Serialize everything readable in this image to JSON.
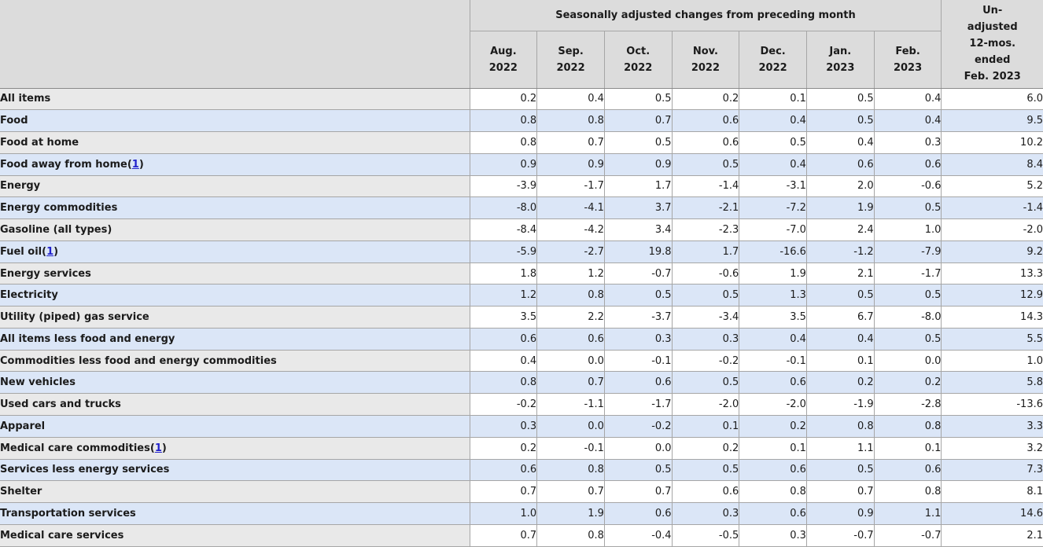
{
  "table": {
    "seasonally_adjusted_header": "Seasonally adjusted changes from preceding month",
    "unadjusted_header_lines": [
      "Un-",
      "adjusted",
      "12-mos.",
      "ended",
      "Feb. 2023"
    ],
    "month_columns": [
      {
        "month": "Aug.",
        "year": "2022"
      },
      {
        "month": "Sep.",
        "year": "2022"
      },
      {
        "month": "Oct.",
        "year": "2022"
      },
      {
        "month": "Nov.",
        "year": "2022"
      },
      {
        "month": "Dec.",
        "year": "2022"
      },
      {
        "month": "Jan.",
        "year": "2023"
      },
      {
        "month": "Feb.",
        "year": "2023"
      }
    ],
    "rows": [
      {
        "label": "All items",
        "indent": 0,
        "footnote": null,
        "values": [
          "0.2",
          "0.4",
          "0.5",
          "0.2",
          "0.1",
          "0.5",
          "0.4"
        ],
        "unadjusted": "6.0"
      },
      {
        "label": "Food",
        "indent": 1,
        "footnote": null,
        "values": [
          "0.8",
          "0.8",
          "0.7",
          "0.6",
          "0.4",
          "0.5",
          "0.4"
        ],
        "unadjusted": "9.5"
      },
      {
        "label": "Food at home",
        "indent": 2,
        "footnote": null,
        "values": [
          "0.8",
          "0.7",
          "0.5",
          "0.6",
          "0.5",
          "0.4",
          "0.3"
        ],
        "unadjusted": "10.2"
      },
      {
        "label": "Food away from home",
        "indent": 2,
        "footnote": "1",
        "values": [
          "0.9",
          "0.9",
          "0.9",
          "0.5",
          "0.4",
          "0.6",
          "0.6"
        ],
        "unadjusted": "8.4"
      },
      {
        "label": "Energy",
        "indent": 1,
        "footnote": null,
        "values": [
          "-3.9",
          "-1.7",
          "1.7",
          "-1.4",
          "-3.1",
          "2.0",
          "-0.6"
        ],
        "unadjusted": "5.2"
      },
      {
        "label": "Energy commodities",
        "indent": 2,
        "footnote": null,
        "values": [
          "-8.0",
          "-4.1",
          "3.7",
          "-2.1",
          "-7.2",
          "1.9",
          "0.5"
        ],
        "unadjusted": "-1.4"
      },
      {
        "label": "Gasoline (all types)",
        "indent": 3,
        "footnote": null,
        "values": [
          "-8.4",
          "-4.2",
          "3.4",
          "-2.3",
          "-7.0",
          "2.4",
          "1.0"
        ],
        "unadjusted": "-2.0"
      },
      {
        "label": "Fuel oil",
        "indent": 3,
        "footnote": "1",
        "values": [
          "-5.9",
          "-2.7",
          "19.8",
          "1.7",
          "-16.6",
          "-1.2",
          "-7.9"
        ],
        "unadjusted": "9.2"
      },
      {
        "label": "Energy services",
        "indent": 2,
        "footnote": null,
        "values": [
          "1.8",
          "1.2",
          "-0.7",
          "-0.6",
          "1.9",
          "2.1",
          "-1.7"
        ],
        "unadjusted": "13.3"
      },
      {
        "label": "Electricity",
        "indent": 3,
        "footnote": null,
        "values": [
          "1.2",
          "0.8",
          "0.5",
          "0.5",
          "1.3",
          "0.5",
          "0.5"
        ],
        "unadjusted": "12.9"
      },
      {
        "label": "Utility (piped) gas service",
        "indent": 3,
        "footnote": null,
        "values": [
          "3.5",
          "2.2",
          "-3.7",
          "-3.4",
          "3.5",
          "6.7",
          "-8.0"
        ],
        "unadjusted": "14.3"
      },
      {
        "label": "All items less food and energy",
        "indent": 1,
        "footnote": null,
        "values": [
          "0.6",
          "0.6",
          "0.3",
          "0.3",
          "0.4",
          "0.4",
          "0.5"
        ],
        "unadjusted": "5.5"
      },
      {
        "label": "Commodities less food and energy commodities",
        "indent": 2,
        "footnote": null,
        "values": [
          "0.4",
          "0.0",
          "-0.1",
          "-0.2",
          "-0.1",
          "0.1",
          "0.0"
        ],
        "unadjusted": "1.0"
      },
      {
        "label": "New vehicles",
        "indent": 3,
        "footnote": null,
        "values": [
          "0.8",
          "0.7",
          "0.6",
          "0.5",
          "0.6",
          "0.2",
          "0.2"
        ],
        "unadjusted": "5.8"
      },
      {
        "label": "Used cars and trucks",
        "indent": 3,
        "footnote": null,
        "values": [
          "-0.2",
          "-1.1",
          "-1.7",
          "-2.0",
          "-2.0",
          "-1.9",
          "-2.8"
        ],
        "unadjusted": "-13.6"
      },
      {
        "label": "Apparel",
        "indent": 3,
        "footnote": null,
        "values": [
          "0.3",
          "0.0",
          "-0.2",
          "0.1",
          "0.2",
          "0.8",
          "0.8"
        ],
        "unadjusted": "3.3"
      },
      {
        "label": "Medical care commodities",
        "indent": 3,
        "footnote": "1",
        "values": [
          "0.2",
          "-0.1",
          "0.0",
          "0.2",
          "0.1",
          "1.1",
          "0.1"
        ],
        "unadjusted": "3.2"
      },
      {
        "label": "Services less energy services",
        "indent": 2,
        "footnote": null,
        "values": [
          "0.6",
          "0.8",
          "0.5",
          "0.5",
          "0.6",
          "0.5",
          "0.6"
        ],
        "unadjusted": "7.3"
      },
      {
        "label": "Shelter",
        "indent": 3,
        "footnote": null,
        "values": [
          "0.7",
          "0.7",
          "0.7",
          "0.6",
          "0.8",
          "0.7",
          "0.8"
        ],
        "unadjusted": "8.1"
      },
      {
        "label": "Transportation services",
        "indent": 3,
        "footnote": null,
        "values": [
          "1.0",
          "1.9",
          "0.6",
          "0.3",
          "0.6",
          "0.9",
          "1.1"
        ],
        "unadjusted": "14.6"
      },
      {
        "label": "Medical care services",
        "indent": 3,
        "footnote": null,
        "values": [
          "0.7",
          "0.8",
          "-0.4",
          "-0.5",
          "0.3",
          "-0.7",
          "-0.7"
        ],
        "unadjusted": "2.1"
      }
    ]
  },
  "colors": {
    "header_bg": "#dcdcdc",
    "row_label_gray": "#e9e9e9",
    "row_blue": "#dbe6f7",
    "row_white": "#ffffff",
    "border": "#a6a6a6",
    "text": "#1b1b1b",
    "footnote_link": "#2222cc"
  }
}
